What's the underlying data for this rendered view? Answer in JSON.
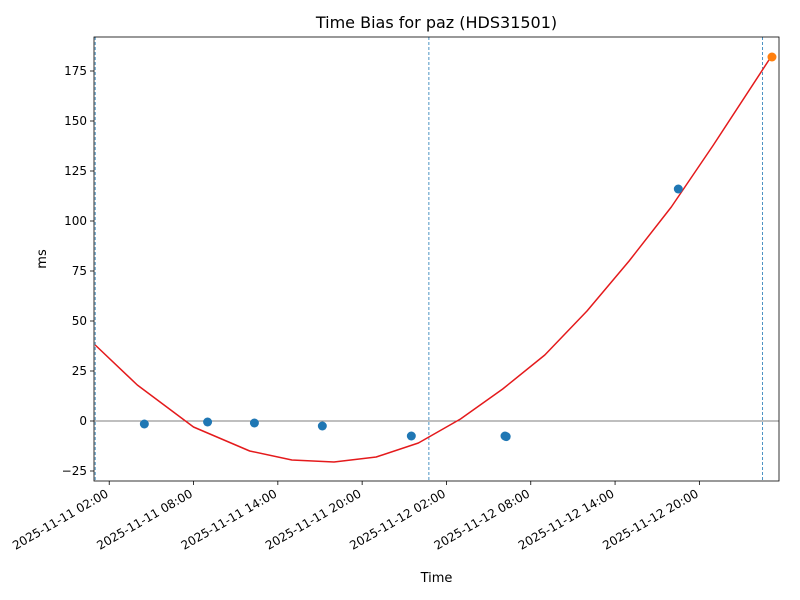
{
  "chart_data": {
    "type": "scatter",
    "title": "Time Bias for paz (HDS31501)",
    "xlabel": "Time",
    "ylabel": "ms",
    "x_ticks": [
      "2025-11-11 02:00",
      "2025-11-11 08:00",
      "2025-11-11 14:00",
      "2025-11-11 20:00",
      "2025-11-12 02:00",
      "2025-11-12 08:00",
      "2025-11-12 14:00",
      "2025-11-12 20:00"
    ],
    "y_ticks": [
      -25,
      0,
      25,
      50,
      75,
      100,
      125,
      150,
      175
    ],
    "xlim": [
      "2025-11-11 00:55",
      "2025-11-13 01:40"
    ],
    "ylim": [
      -30,
      192
    ],
    "grid": false,
    "zero_line": 0,
    "vertical_lines": [
      "2025-11-11 01:00",
      "2025-11-12 00:45",
      "2025-11-13 00:30"
    ],
    "points": [
      {
        "x": "2025-11-11 04:30",
        "y": -1.5
      },
      {
        "x": "2025-11-11 09:00",
        "y": -0.5
      },
      {
        "x": "2025-11-11 12:20",
        "y": -1.0
      },
      {
        "x": "2025-11-11 17:10",
        "y": -2.5
      },
      {
        "x": "2025-11-11 23:30",
        "y": -7.5
      },
      {
        "x": "2025-11-12 06:10",
        "y": -7.5
      },
      {
        "x": "2025-11-12 06:15",
        "y": -7.8
      },
      {
        "x": "2025-11-12 18:30",
        "y": 116
      }
    ],
    "highlight_point": {
      "x": "2025-11-13 01:10",
      "y": 182
    },
    "fit_curve": [
      {
        "x": "2025-11-11 01:00",
        "y": 38
      },
      {
        "x": "2025-11-11 04:00",
        "y": 18
      },
      {
        "x": "2025-11-11 08:00",
        "y": -3
      },
      {
        "x": "2025-11-11 12:00",
        "y": -15
      },
      {
        "x": "2025-11-11 15:00",
        "y": -19.5
      },
      {
        "x": "2025-11-11 18:00",
        "y": -20.5
      },
      {
        "x": "2025-11-11 21:00",
        "y": -18
      },
      {
        "x": "2025-11-12 00:00",
        "y": -11
      },
      {
        "x": "2025-11-12 03:00",
        "y": 1
      },
      {
        "x": "2025-11-12 06:00",
        "y": 16
      },
      {
        "x": "2025-11-12 09:00",
        "y": 33
      },
      {
        "x": "2025-11-12 12:00",
        "y": 55
      },
      {
        "x": "2025-11-12 15:00",
        "y": 80
      },
      {
        "x": "2025-11-12 18:00",
        "y": 107
      },
      {
        "x": "2025-11-12 21:00",
        "y": 138
      },
      {
        "x": "2025-11-13 01:00",
        "y": 181
      }
    ],
    "colors": {
      "points": "#1f77b4",
      "highlight": "#ff7f0e",
      "fit": "#e41a1c",
      "vertical_lines": "#1f77b4",
      "zero_line": "#000000"
    }
  }
}
